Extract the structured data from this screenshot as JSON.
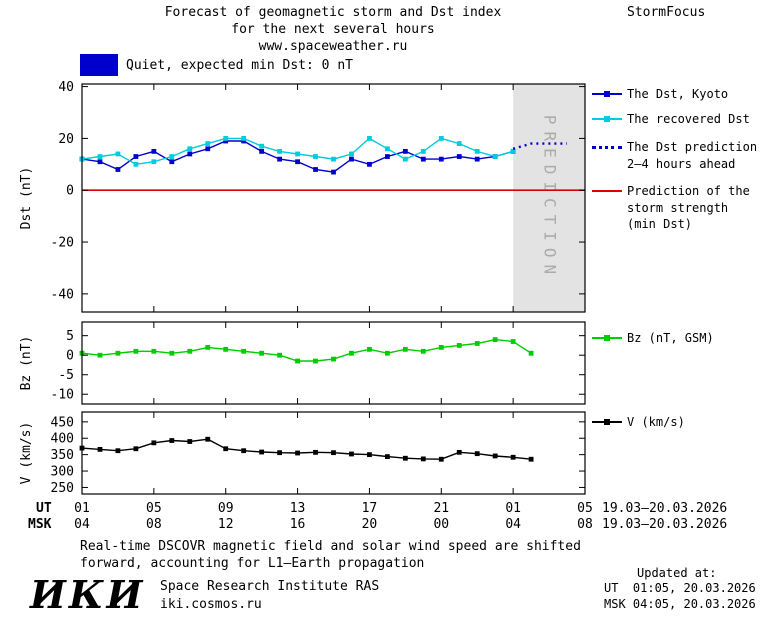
{
  "header": {
    "title_line1": "Forecast of geomagnetic storm and Dst index",
    "title_line2": "for the next several hours",
    "title_line3": "www.spaceweather.ru",
    "brand": "StormFocus"
  },
  "status_banner": {
    "label": "Quiet, expected min Dst: 0 nT",
    "swatch_color": "#0000CC"
  },
  "chart_data": {
    "type": "line",
    "title": "Forecast of geomagnetic storm and Dst index for the next several hours",
    "xaxis": {
      "xlim": [
        1,
        29
      ],
      "tick_hours": [
        1,
        5,
        9,
        13,
        17,
        21,
        25,
        29
      ],
      "ut_labels": [
        "01",
        "05",
        "09",
        "13",
        "17",
        "21",
        "01",
        "05"
      ],
      "msk_labels": [
        "04",
        "08",
        "12",
        "16",
        "20",
        "00",
        "04",
        "08"
      ],
      "ut_row_label": "UT",
      "msk_row_label": "MSK",
      "ut_date": "19.03—20.03.2026",
      "msk_date": "19.03—20.03.2026"
    },
    "panels": [
      {
        "id": "dst",
        "ylabel": "Dst (nT)",
        "ylim": [
          -47,
          41
        ],
        "yticks": [
          40,
          20,
          0,
          -20,
          -40
        ],
        "prediction_band": {
          "start": 25,
          "end": 29,
          "label": "PREDICTION",
          "fill": "#E3E3E3",
          "text_color": "#ABABAB"
        },
        "series": [
          {
            "name": "The Dst, Kyoto",
            "color": "#0000CC",
            "marker": true,
            "x": [
              1,
              2,
              3,
              4,
              5,
              6,
              7,
              8,
              9,
              10,
              11,
              12,
              13,
              14,
              15,
              16,
              17,
              18,
              19,
              20,
              21,
              22,
              23,
              24,
              25
            ],
            "y": [
              12,
              11,
              8,
              13,
              15,
              11,
              14,
              16,
              19,
              19,
              15,
              12,
              11,
              8,
              7,
              12,
              10,
              13,
              15,
              12,
              12,
              13,
              12,
              13,
              15
            ]
          },
          {
            "name": "The recovered Dst",
            "color": "#00CCDD",
            "marker": true,
            "x": [
              1,
              2,
              3,
              4,
              5,
              6,
              7,
              8,
              9,
              10,
              11,
              12,
              13,
              14,
              15,
              16,
              17,
              18,
              19,
              20,
              21,
              22,
              23,
              24,
              25
            ],
            "y": [
              12,
              13,
              14,
              10,
              11,
              13,
              16,
              18,
              20,
              20,
              17,
              15,
              14,
              13,
              12,
              14,
              20,
              16,
              12,
              15,
              20,
              18,
              15,
              13,
              15
            ]
          },
          {
            "name": "The Dst prediction 2—4 hours ahead",
            "color": "#0000CC",
            "dash": true,
            "x": [
              25,
              26,
              27,
              28
            ],
            "y": [
              16,
              18,
              18,
              18
            ]
          },
          {
            "name": "Prediction of the storm strength (min Dst)",
            "color": "#DD0000",
            "kind": "hline",
            "y": 0
          }
        ]
      },
      {
        "id": "bz",
        "ylabel": "Bz (nT)",
        "ylim": [
          -12.5,
          8.5
        ],
        "yticks": [
          5,
          0,
          -5,
          -10
        ],
        "series": [
          {
            "name": "Bz (nT, GSM)",
            "color": "#00CC00",
            "marker": true,
            "x": [
              1,
              2,
              3,
              4,
              5,
              6,
              7,
              8,
              9,
              10,
              11,
              12,
              13,
              14,
              15,
              16,
              17,
              18,
              19,
              20,
              21,
              22,
              23,
              24,
              25,
              26
            ],
            "y": [
              0.5,
              0,
              0.5,
              1,
              1,
              0.5,
              1,
              2,
              1.5,
              1,
              0.5,
              0,
              -1.5,
              -1.5,
              -1,
              0.5,
              1.5,
              0.5,
              1.5,
              1,
              2,
              2.5,
              3,
              4,
              3.5,
              0.5
            ]
          }
        ]
      },
      {
        "id": "v",
        "ylabel": "V (km/s)",
        "ylim": [
          230,
          480
        ],
        "yticks": [
          450,
          400,
          350,
          300,
          250
        ],
        "series": [
          {
            "name": "V (km/s)",
            "color": "#000000",
            "marker": true,
            "x": [
              1,
              2,
              3,
              4,
              5,
              6,
              7,
              8,
              9,
              10,
              11,
              12,
              13,
              14,
              15,
              16,
              17,
              18,
              19,
              20,
              21,
              22,
              23,
              24,
              25,
              26
            ],
            "y": [
              370,
              366,
              362,
              368,
              386,
              393,
              390,
              397,
              368,
              362,
              358,
              356,
              355,
              357,
              356,
              352,
              350,
              344,
              339,
              337,
              336,
              357,
              353,
              346,
              342,
              336
            ]
          }
        ]
      }
    ]
  },
  "legend": {
    "items": [
      {
        "label": "The Dst, Kyoto",
        "color": "#0000CC",
        "style": "marker"
      },
      {
        "label": "The recovered Dst",
        "color": "#00CCDD",
        "style": "marker"
      },
      {
        "line1": "The Dst prediction",
        "line2": "2—4 hours ahead",
        "color": "#0000CC",
        "style": "dotted"
      },
      {
        "line1": "Prediction of the",
        "line2": "storm strength",
        "line3": "(min Dst)",
        "color": "#DD0000",
        "style": "line"
      },
      {
        "label": "Bz (nT, GSM)",
        "color": "#00CC00",
        "style": "marker"
      },
      {
        "label": "V (km/s)",
        "color": "#000000",
        "style": "marker"
      }
    ]
  },
  "footer_note": {
    "line1": "Real-time DSCOVR magnetic field and solar wind speed are shifted",
    "line2": "forward, accounting for L1—Earth propagation"
  },
  "institute": {
    "logo": "ИКИ",
    "name": "Space Research Institute RAS",
    "url": "iki.cosmos.ru"
  },
  "updated": {
    "label": "Updated at:",
    "ut": "UT  01:05, 20.03.2026",
    "msk": "MSK 04:05, 20.03.2026"
  }
}
